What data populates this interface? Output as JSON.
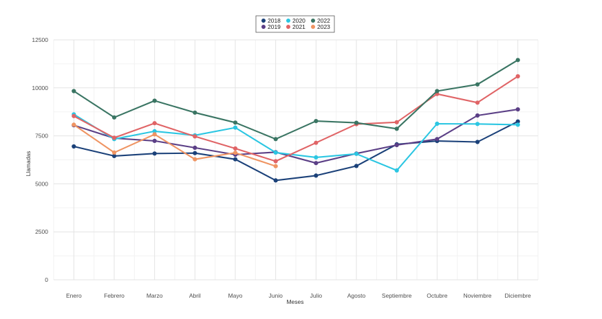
{
  "chart_data": {
    "type": "line",
    "title": "",
    "xlabel": "Meses",
    "ylabel": "Llamadas",
    "ylim": [
      0,
      12500
    ],
    "yticks": [
      0,
      2500,
      5000,
      7500,
      10000,
      12500
    ],
    "ytick_labels": [
      "0",
      "2500",
      "5000",
      "7500",
      "10000",
      "12500"
    ],
    "grid": true,
    "legend_position": "top-center",
    "categories": [
      "Enero",
      "Febrero",
      "Marzo",
      "Abril",
      "Mayo",
      "Junio",
      "Julio",
      "Agosto",
      "Septiembre",
      "Octubre",
      "Noviembre",
      "Diciembre"
    ],
    "series": [
      {
        "name": "2018",
        "color": "#1b4179",
        "values": [
          6950,
          6450,
          6580,
          6600,
          6280,
          5180,
          5430,
          5930,
          7060,
          7230,
          7180,
          8250
        ]
      },
      {
        "name": "2019",
        "color": "#5b3f86",
        "values": [
          8050,
          7380,
          7240,
          6880,
          6520,
          6650,
          6080,
          6580,
          7020,
          7330,
          8560,
          8880
        ]
      },
      {
        "name": "2020",
        "color": "#2bc6e2",
        "values": [
          8620,
          7330,
          7740,
          7530,
          7930,
          6630,
          6380,
          6560,
          5700,
          8130,
          8120,
          8080
        ]
      },
      {
        "name": "2021",
        "color": "#e06466",
        "values": [
          8530,
          7400,
          8160,
          7470,
          6840,
          6180,
          7140,
          8110,
          8210,
          9680,
          9230,
          10600
        ]
      },
      {
        "name": "2022",
        "color": "#3a7563",
        "values": [
          9830,
          8460,
          9330,
          8710,
          8190,
          7330,
          8270,
          8180,
          7870,
          9830,
          10180,
          11450
        ]
      },
      {
        "name": "2023",
        "color": "#ef9462",
        "values": [
          8080,
          6630,
          7580,
          6280,
          6620,
          5920,
          null,
          null,
          null,
          null,
          null,
          null
        ]
      }
    ]
  }
}
